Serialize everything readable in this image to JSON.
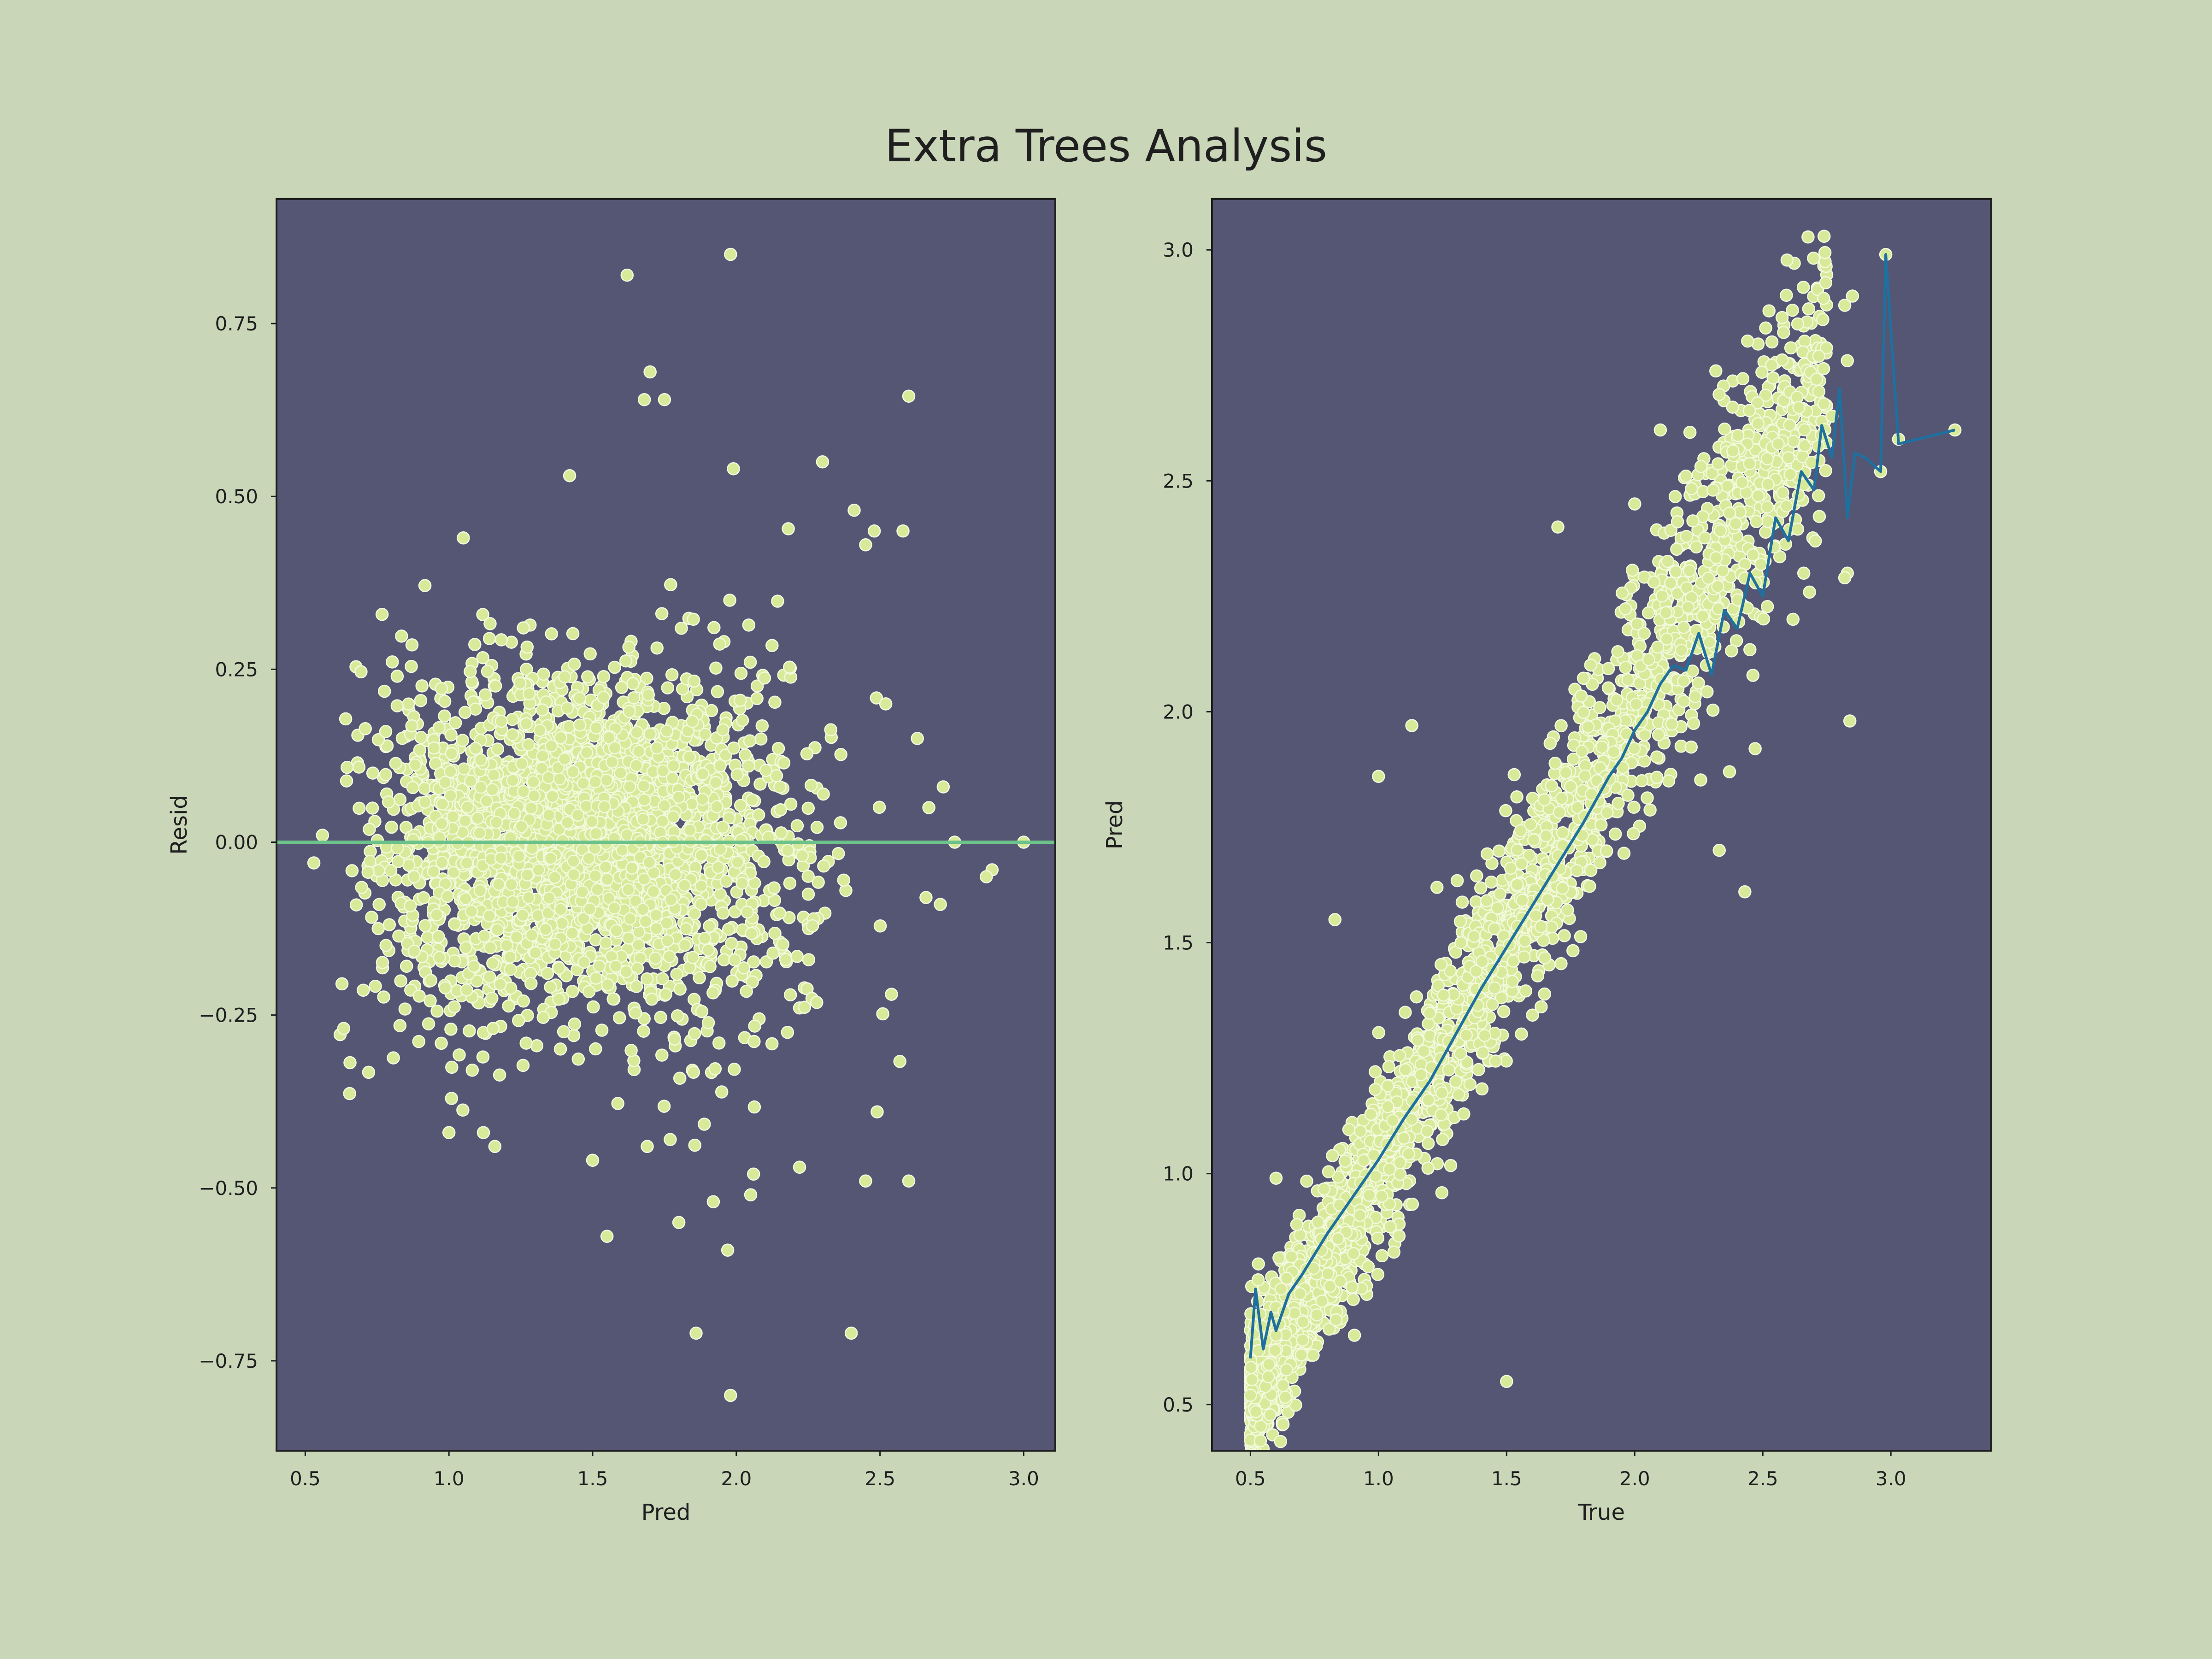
{
  "figure": {
    "title": "Extra Trees Analysis",
    "background": "#c9d6b8",
    "panel_color": "#555674",
    "point_color": "#d8ea9a",
    "point_edge": "#f4f9df"
  },
  "chart_data": [
    {
      "type": "scatter",
      "title": "",
      "xlabel": "Pred",
      "ylabel": "Resid",
      "xlim": [
        0.4,
        3.11
      ],
      "ylim": [
        -0.88,
        0.93
      ],
      "xticks": [
        0.5,
        1.0,
        1.5,
        2.0,
        2.5,
        3.0
      ],
      "xtick_labels": [
        "0.5",
        "1.0",
        "1.5",
        "2.0",
        "2.5",
        "3.0"
      ],
      "yticks": [
        -0.75,
        -0.5,
        -0.25,
        0.0,
        0.25,
        0.5,
        0.75
      ],
      "ytick_labels": [
        "−0.75",
        "−0.50",
        "−0.25",
        "0.00",
        "0.25",
        "0.50",
        "0.75"
      ],
      "grid": false,
      "reference_line": {
        "y": 0.0,
        "color": "#6cc28a"
      },
      "series": [
        {
          "color": "#d8ea9a",
          "points": [
            [
              1.62,
              0.82
            ],
            [
              1.98,
              0.85
            ],
            [
              1.7,
              0.68
            ],
            [
              1.68,
              0.64
            ],
            [
              1.75,
              0.64
            ],
            [
              2.6,
              0.645
            ],
            [
              1.05,
              0.44
            ],
            [
              1.42,
              0.53
            ],
            [
              1.99,
              0.54
            ],
            [
              2.3,
              0.55
            ],
            [
              2.41,
              0.48
            ],
            [
              2.48,
              0.45
            ],
            [
              2.58,
              0.45
            ],
            [
              2.45,
              0.43
            ],
            [
              0.82,
              0.24
            ],
            [
              0.78,
              0.16
            ],
            [
              2.52,
              0.2
            ],
            [
              2.63,
              0.15
            ],
            [
              2.72,
              0.08
            ],
            [
              2.67,
              0.05
            ],
            [
              0.56,
              0.01
            ],
            [
              0.53,
              -0.03
            ],
            [
              2.76,
              0.0
            ],
            [
              3.0,
              0.0
            ],
            [
              2.66,
              -0.08
            ],
            [
              2.71,
              -0.09
            ],
            [
              2.89,
              -0.04
            ],
            [
              2.87,
              -0.05
            ],
            [
              1.0,
              -0.42
            ],
            [
              1.12,
              -0.42
            ],
            [
              1.16,
              -0.44
            ],
            [
              1.5,
              -0.46
            ],
            [
              1.55,
              -0.57
            ],
            [
              1.8,
              -0.55
            ],
            [
              1.86,
              -0.71
            ],
            [
              1.97,
              -0.59
            ],
            [
              1.98,
              -0.8
            ],
            [
              2.4,
              -0.71
            ],
            [
              2.45,
              -0.49
            ],
            [
              2.6,
              -0.49
            ],
            [
              2.49,
              -0.39
            ],
            [
              2.54,
              -0.22
            ],
            [
              2.06,
              -0.48
            ],
            [
              2.22,
              -0.47
            ],
            [
              2.05,
              -0.51
            ],
            [
              1.69,
              -0.44
            ],
            [
              1.77,
              -0.43
            ],
            [
              1.92,
              -0.52
            ]
          ],
          "cloud": {
            "n": 3200,
            "x_mean": 1.45,
            "x_sd": 0.34,
            "y_sd": 0.105,
            "y_sd_slope": 0.055,
            "seed": 7
          }
        }
      ]
    },
    {
      "type": "scatter",
      "title": "",
      "xlabel": "True",
      "ylabel": "Pred",
      "xlim": [
        0.35,
        3.39
      ],
      "ylim": [
        0.4,
        3.11
      ],
      "xticks": [
        0.5,
        1.0,
        1.5,
        2.0,
        2.5,
        3.0
      ],
      "xtick_labels": [
        "0.5",
        "1.0",
        "1.5",
        "2.0",
        "2.5",
        "3.0"
      ],
      "yticks": [
        0.5,
        1.0,
        1.5,
        2.0,
        2.5,
        3.0
      ],
      "ytick_labels": [
        "0.5",
        "1.0",
        "1.5",
        "2.0",
        "2.5",
        "3.0"
      ],
      "grid": false,
      "series": [
        {
          "color": "#d8ea9a",
          "points": [
            [
              0.5,
              0.52
            ],
            [
              0.53,
              0.77
            ],
            [
              0.57,
              0.56
            ],
            [
              0.6,
              0.65
            ],
            [
              0.62,
              0.75
            ],
            [
              0.66,
              0.82
            ],
            [
              2.98,
              2.99
            ],
            [
              2.85,
              2.9
            ],
            [
              2.82,
              2.88
            ],
            [
              2.96,
              2.52
            ],
            [
              3.03,
              2.59
            ],
            [
              3.25,
              2.61
            ],
            [
              2.83,
              2.76
            ],
            [
              2.77,
              2.64
            ],
            [
              2.84,
              1.98
            ],
            [
              2.43,
              1.61
            ],
            [
              2.1,
              2.61
            ],
            [
              1.7,
              2.4
            ],
            [
              1.13,
              1.97
            ],
            [
              1.0,
              1.86
            ],
            [
              0.83,
              1.55
            ],
            [
              0.6,
              0.99
            ],
            [
              1.06,
              0.83
            ],
            [
              1.5,
              0.55
            ],
            [
              2.33,
              1.7
            ],
            [
              2.37,
              1.87
            ],
            [
              2.47,
              1.92
            ],
            [
              2.6,
              2.55
            ],
            [
              2.71,
              2.72
            ],
            [
              2.83,
              2.3
            ],
            [
              2.82,
              2.29
            ],
            [
              2.37,
              2.43
            ],
            [
              2.2,
              2.51
            ],
            [
              2.0,
              2.45
            ],
            [
              2.56,
              2.58
            ],
            [
              2.66,
              2.3
            ]
          ],
          "cloud": {
            "n": 3000,
            "x_min": 0.5,
            "x_max": 2.75,
            "skew": 1.6,
            "sd_base": 0.07,
            "sd_slope": 0.04,
            "seed": 11
          }
        }
      ],
      "trend_line": {
        "color": "#1f6f9f",
        "points": [
          [
            0.5,
            0.6
          ],
          [
            0.52,
            0.75
          ],
          [
            0.55,
            0.62
          ],
          [
            0.58,
            0.7
          ],
          [
            0.6,
            0.66
          ],
          [
            0.65,
            0.74
          ],
          [
            0.7,
            0.78
          ],
          [
            0.8,
            0.87
          ],
          [
            0.9,
            0.95
          ],
          [
            1.0,
            1.03
          ],
          [
            1.1,
            1.12
          ],
          [
            1.2,
            1.2
          ],
          [
            1.3,
            1.3
          ],
          [
            1.4,
            1.4
          ],
          [
            1.5,
            1.49
          ],
          [
            1.6,
            1.58
          ],
          [
            1.7,
            1.67
          ],
          [
            1.8,
            1.76
          ],
          [
            1.9,
            1.86
          ],
          [
            1.95,
            1.9
          ],
          [
            2.0,
            1.96
          ],
          [
            2.05,
            2.0
          ],
          [
            2.1,
            2.06
          ],
          [
            2.15,
            2.1
          ],
          [
            2.2,
            2.09
          ],
          [
            2.25,
            2.17
          ],
          [
            2.3,
            2.08
          ],
          [
            2.35,
            2.22
          ],
          [
            2.4,
            2.18
          ],
          [
            2.45,
            2.3
          ],
          [
            2.5,
            2.25
          ],
          [
            2.55,
            2.42
          ],
          [
            2.6,
            2.37
          ],
          [
            2.65,
            2.52
          ],
          [
            2.7,
            2.48
          ],
          [
            2.73,
            2.62
          ],
          [
            2.77,
            2.55
          ],
          [
            2.8,
            2.7
          ],
          [
            2.83,
            2.42
          ],
          [
            2.86,
            2.56
          ],
          [
            2.9,
            2.55
          ],
          [
            2.96,
            2.52
          ],
          [
            2.98,
            2.99
          ],
          [
            3.03,
            2.58
          ],
          [
            3.25,
            2.61
          ]
        ]
      }
    }
  ]
}
